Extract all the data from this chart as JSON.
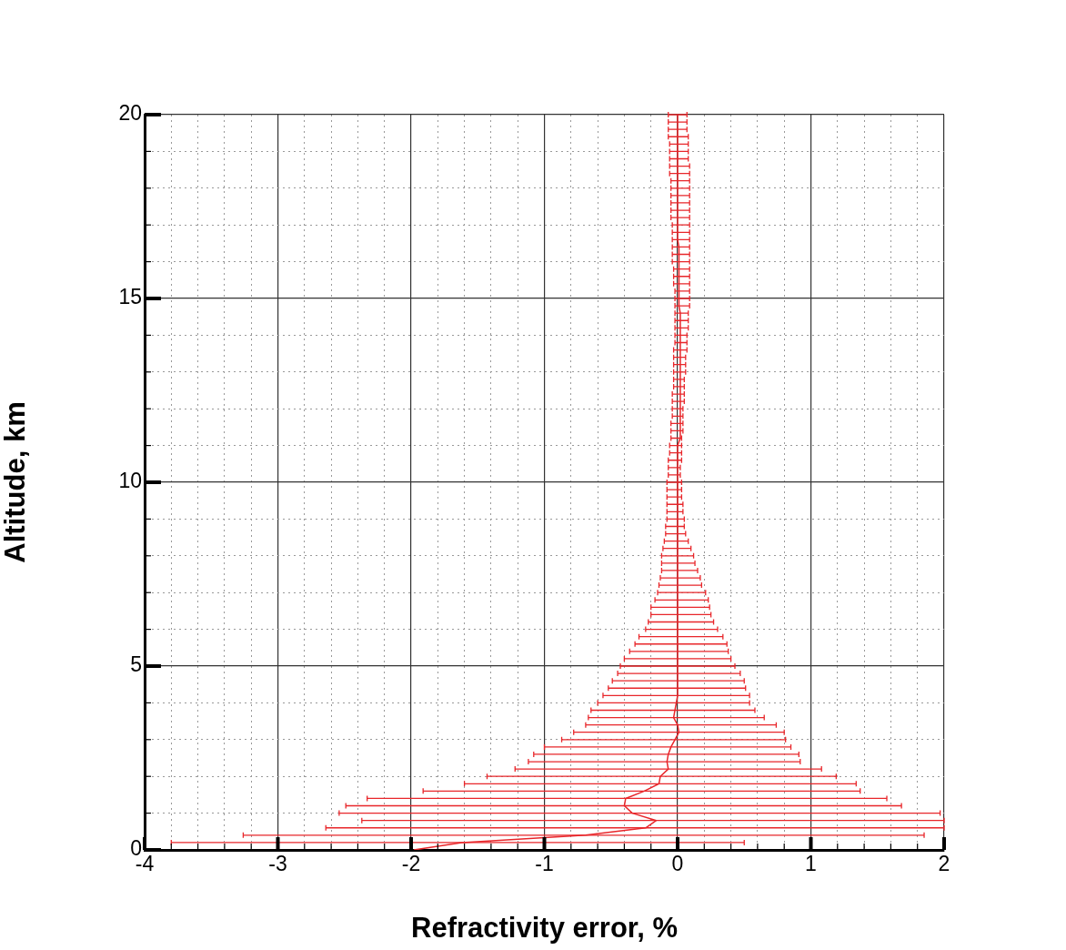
{
  "chart_data": {
    "type": "line",
    "xlabel": "Refractivity error, %",
    "ylabel": "Altitude, km",
    "xlim": [
      -4,
      2
    ],
    "ylim": [
      0,
      20
    ],
    "xticks": [
      -4,
      {
        "value": -3.8,
        "label": null
      },
      {
        "value": -3.6,
        "label": null
      },
      {
        "value": -3.4,
        "label": null
      },
      {
        "value": -3.2,
        "label": null
      },
      -3,
      {
        "value": -2.8,
        "label": null
      },
      {
        "value": -2.6,
        "label": null
      },
      {
        "value": -2.4,
        "label": null
      },
      {
        "value": -2.2,
        "label": null
      },
      -2,
      {
        "value": -1.8,
        "label": null
      },
      {
        "value": -1.6,
        "label": null
      },
      {
        "value": -1.4,
        "label": null
      },
      {
        "value": -1.2,
        "label": null
      },
      -1,
      {
        "value": -0.8,
        "label": null
      },
      {
        "value": -0.6,
        "label": null
      },
      {
        "value": -0.4,
        "label": null
      },
      {
        "value": -0.2,
        "label": null
      },
      0,
      {
        "value": 0.2,
        "label": null
      },
      {
        "value": 0.4,
        "label": null
      },
      {
        "value": 0.6,
        "label": null
      },
      {
        "value": 0.8,
        "label": null
      },
      1,
      {
        "value": 1.2,
        "label": null
      },
      {
        "value": 1.4,
        "label": null
      },
      {
        "value": 1.6,
        "label": null
      },
      {
        "value": 1.8,
        "label": null
      },
      2
    ],
    "yticks": [
      0,
      {
        "value": 1,
        "label": null
      },
      {
        "value": 2,
        "label": null
      },
      {
        "value": 3,
        "label": null
      },
      {
        "value": 4,
        "label": null
      },
      5,
      {
        "value": 6,
        "label": null
      },
      {
        "value": 7,
        "label": null
      },
      {
        "value": 8,
        "label": null
      },
      {
        "value": 9,
        "label": null
      },
      10,
      {
        "value": 11,
        "label": null
      },
      {
        "value": 12,
        "label": null
      },
      {
        "value": 13,
        "label": null
      },
      {
        "value": 14,
        "label": null
      },
      15,
      {
        "value": 16,
        "label": null
      },
      {
        "value": 17,
        "label": null
      },
      {
        "value": 18,
        "label": null
      },
      {
        "value": 19,
        "label": null
      },
      20
    ],
    "grid": true,
    "marker": "none",
    "line_style": "solid",
    "series": [
      {
        "color": "#e8262a",
        "x": [
          -1.98,
          -1.62,
          -0.69,
          -0.24,
          -0.16,
          -0.34,
          -0.4,
          -0.39,
          -0.25,
          -0.14,
          -0.13,
          -0.07,
          -0.08,
          -0.07,
          -0.05,
          -0.02,
          0.01,
          0,
          -0.03,
          -0.02,
          -0.01,
          0,
          0,
          0,
          0,
          0,
          0,
          0,
          0,
          0,
          0,
          0,
          0,
          0,
          0,
          0,
          0,
          0,
          0,
          0,
          0,
          0,
          0,
          0,
          0,
          0,
          0,
          0,
          0,
          0,
          0,
          0,
          0,
          0,
          0,
          0,
          0.02,
          0.02,
          0.02,
          0.02,
          0.02,
          0.02,
          0.02,
          0.02,
          0.02,
          0.02,
          0.02,
          0.02,
          0.02,
          0.02,
          0.02,
          0.02,
          0.02,
          0.02,
          0.01,
          0.01,
          0.01,
          0.01,
          0.01,
          0.01,
          0.01,
          0.01,
          0.01,
          0,
          0,
          0,
          0,
          0,
          0,
          0,
          0,
          0,
          0,
          0,
          0,
          0,
          0,
          0,
          0,
          0,
          0
        ],
        "values": [
          0,
          0.2,
          0.4,
          0.6,
          0.8,
          1,
          1.2,
          1.4,
          1.6,
          1.8,
          2,
          2.2,
          2.4,
          2.6,
          2.8,
          3,
          3.2,
          3.4,
          3.6,
          3.8,
          4,
          4.2,
          4.4,
          4.6,
          4.8,
          5,
          5.2,
          5.4,
          5.6,
          5.8,
          6,
          6.2,
          6.4,
          6.6,
          6.8,
          7,
          7.2,
          7.4,
          7.6,
          7.8,
          8,
          8.2,
          8.4,
          8.6,
          8.8,
          9,
          9.2,
          9.4,
          9.6,
          9.8,
          10,
          10.2,
          10.4,
          10.6,
          10.8,
          11,
          11.2,
          11.4,
          11.6,
          11.8,
          12,
          12.2,
          12.4,
          12.6,
          12.8,
          13,
          13.2,
          13.4,
          13.6,
          13.8,
          14,
          14.2,
          14.4,
          14.6,
          14.8,
          15,
          15.2,
          15.4,
          15.6,
          15.8,
          16,
          16.2,
          16.4,
          16.6,
          16.8,
          17,
          17.2,
          17.4,
          17.6,
          17.8,
          18,
          18.2,
          18.4,
          18.6,
          18.8,
          19,
          19.2,
          19.4,
          19.6,
          19.8,
          20
        ],
        "xerrors": [
          null,
          [
            -3.8,
            0.5
          ],
          [
            -3.26,
            1.85
          ],
          [
            -2.64,
            2.0
          ],
          [
            -2.37,
            2.0
          ],
          [
            -2.54,
            1.97
          ],
          [
            -2.49,
            1.68
          ],
          [
            -2.33,
            1.57
          ],
          [
            -1.91,
            1.37
          ],
          [
            -1.6,
            1.34
          ],
          [
            -1.43,
            1.19
          ],
          [
            -1.22,
            1.08
          ],
          [
            -1.12,
            0.92
          ],
          [
            -1.08,
            0.91
          ],
          [
            -1.0,
            0.85
          ],
          [
            -0.87,
            0.81
          ],
          [
            -0.78,
            0.8
          ],
          [
            -0.69,
            0.74
          ],
          [
            -0.67,
            0.65
          ],
          [
            -0.65,
            0.58
          ],
          [
            -0.6,
            0.54
          ],
          [
            -0.56,
            0.54
          ],
          [
            -0.52,
            0.51
          ],
          [
            -0.49,
            0.5
          ],
          [
            -0.45,
            0.47
          ],
          [
            -0.43,
            0.43
          ],
          [
            -0.4,
            0.4
          ],
          [
            -0.36,
            0.38
          ],
          [
            -0.32,
            0.37
          ],
          [
            -0.29,
            0.34
          ],
          [
            -0.24,
            0.3
          ],
          [
            -0.22,
            0.27
          ],
          [
            -0.2,
            0.25
          ],
          [
            -0.2,
            0.24
          ],
          [
            -0.17,
            0.23
          ],
          [
            -0.15,
            0.21
          ],
          [
            -0.14,
            0.18
          ],
          [
            -0.13,
            0.17
          ],
          [
            -0.12,
            0.15
          ],
          [
            -0.12,
            0.13
          ],
          [
            -0.12,
            0.12
          ],
          [
            -0.11,
            0.1
          ],
          [
            -0.1,
            0.08
          ],
          [
            -0.09,
            0.06
          ],
          [
            -0.09,
            0.05
          ],
          [
            -0.08,
            0.05
          ],
          [
            -0.08,
            0.04
          ],
          [
            -0.08,
            0.04
          ],
          [
            -0.08,
            0.03
          ],
          [
            -0.08,
            0.03
          ],
          [
            -0.08,
            0.03
          ],
          [
            -0.07,
            0.02
          ],
          [
            -0.07,
            0.02
          ],
          [
            -0.07,
            0.03
          ],
          [
            -0.06,
            0.03
          ],
          [
            -0.06,
            0.03
          ],
          [
            -0.05,
            0.03
          ],
          [
            -0.05,
            0.04
          ],
          [
            -0.05,
            0.04
          ],
          [
            -0.04,
            0.04
          ],
          [
            -0.04,
            0.04
          ],
          [
            -0.04,
            0.05
          ],
          [
            -0.04,
            0.05
          ],
          [
            -0.03,
            0.05
          ],
          [
            -0.03,
            0.05
          ],
          [
            -0.03,
            0.06
          ],
          [
            -0.03,
            0.06
          ],
          [
            -0.03,
            0.06
          ],
          [
            -0.03,
            0.07
          ],
          [
            -0.02,
            0.07
          ],
          [
            -0.02,
            0.07
          ],
          [
            -0.02,
            0.08
          ],
          [
            -0.02,
            0.08
          ],
          [
            -0.02,
            0.08
          ],
          [
            -0.02,
            0.09
          ],
          [
            -0.02,
            0.09
          ],
          [
            -0.02,
            0.09
          ],
          [
            -0.03,
            0.09
          ],
          [
            -0.03,
            0.09
          ],
          [
            -0.03,
            0.09
          ],
          [
            -0.04,
            0.09
          ],
          [
            -0.04,
            0.09
          ],
          [
            -0.04,
            0.09
          ],
          [
            -0.04,
            0.09
          ],
          [
            -0.04,
            0.09
          ],
          [
            -0.04,
            0.09
          ],
          [
            -0.05,
            0.09
          ],
          [
            -0.05,
            0.09
          ],
          [
            -0.05,
            0.09
          ],
          [
            -0.05,
            0.09
          ],
          [
            -0.05,
            0.09
          ],
          [
            -0.05,
            0.09
          ],
          [
            -0.06,
            0.09
          ],
          [
            -0.06,
            0.09
          ],
          [
            -0.06,
            0.08
          ],
          [
            -0.06,
            0.08
          ],
          [
            -0.06,
            0.08
          ],
          [
            -0.07,
            0.08
          ],
          [
            -0.07,
            0.07
          ],
          [
            -0.07,
            0.07
          ],
          [
            -0.07,
            0.07
          ]
        ]
      }
    ]
  }
}
